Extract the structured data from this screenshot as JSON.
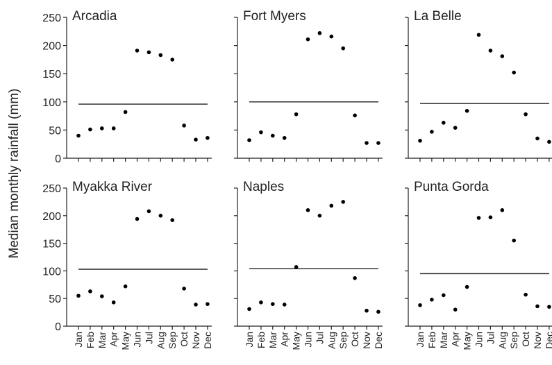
{
  "ylabel": "Median monthly rainfall (mm)",
  "chart_data": [
    {
      "type": "scatter",
      "title": "Arcadia",
      "categories": [
        "Jan",
        "Feb",
        "Mar",
        "Apr",
        "May",
        "Jun",
        "Jul",
        "Aug",
        "Sep",
        "Oct",
        "Nov",
        "Dec"
      ],
      "values": [
        40,
        51,
        53,
        53,
        82,
        191,
        188,
        183,
        175,
        58,
        33,
        36
      ],
      "reference_line": 96,
      "color": "#000000",
      "ylim": [
        0,
        250
      ],
      "yticks": [
        0,
        50,
        100,
        150,
        200,
        250
      ]
    },
    {
      "type": "scatter",
      "title": "Fort Myers",
      "categories": [
        "Jan",
        "Feb",
        "Mar",
        "Apr",
        "May",
        "Jun",
        "Jul",
        "Aug",
        "Sep",
        "Oct",
        "Nov",
        "Dec"
      ],
      "values": [
        32,
        46,
        40,
        36,
        78,
        211,
        222,
        216,
        195,
        76,
        27,
        27
      ],
      "reference_line": 100,
      "color": "#000000",
      "ylim": [
        0,
        250
      ],
      "yticks": [
        0,
        50,
        100,
        150,
        200,
        250
      ]
    },
    {
      "type": "scatter",
      "title": "La Belle",
      "categories": [
        "Jan",
        "Feb",
        "Mar",
        "Apr",
        "May",
        "Jun",
        "Jul",
        "Aug",
        "Sep",
        "Oct",
        "Nov",
        "Dec"
      ],
      "values": [
        31,
        47,
        63,
        54,
        84,
        219,
        191,
        181,
        152,
        78,
        35,
        29
      ],
      "reference_line": 97,
      "color": "#000000",
      "ylim": [
        0,
        250
      ],
      "yticks": [
        0,
        50,
        100,
        150,
        200,
        250
      ]
    },
    {
      "type": "scatter",
      "title": "Myakka River",
      "categories": [
        "Jan",
        "Feb",
        "Mar",
        "Apr",
        "May",
        "Jun",
        "Jul",
        "Aug",
        "Sep",
        "Oct",
        "Nov",
        "Dec"
      ],
      "values": [
        55,
        63,
        54,
        43,
        72,
        194,
        208,
        200,
        192,
        68,
        39,
        40
      ],
      "reference_line": 103,
      "color": "#000000",
      "ylim": [
        0,
        250
      ],
      "yticks": [
        0,
        50,
        100,
        150,
        200,
        250
      ]
    },
    {
      "type": "scatter",
      "title": "Naples",
      "categories": [
        "Jan",
        "Feb",
        "Mar",
        "Apr",
        "May",
        "Jun",
        "Jul",
        "Aug",
        "Sep",
        "Oct",
        "Nov",
        "Dec"
      ],
      "values": [
        31,
        43,
        40,
        39,
        107,
        210,
        200,
        218,
        225,
        87,
        28,
        26
      ],
      "reference_line": 104,
      "color": "#000000",
      "ylim": [
        0,
        250
      ],
      "yticks": [
        0,
        50,
        100,
        150,
        200,
        250
      ]
    },
    {
      "type": "scatter",
      "title": "Punta Gorda",
      "categories": [
        "Jan",
        "Feb",
        "Mar",
        "Apr",
        "May",
        "Jun",
        "Jul",
        "Aug",
        "Sep",
        "Oct",
        "Nov",
        "Dec"
      ],
      "values": [
        38,
        48,
        56,
        30,
        71,
        196,
        197,
        210,
        155,
        57,
        36,
        35
      ],
      "reference_line": 95,
      "color": "#000000",
      "ylim": [
        0,
        250
      ],
      "yticks": [
        0,
        50,
        100,
        150,
        200,
        250
      ]
    }
  ]
}
